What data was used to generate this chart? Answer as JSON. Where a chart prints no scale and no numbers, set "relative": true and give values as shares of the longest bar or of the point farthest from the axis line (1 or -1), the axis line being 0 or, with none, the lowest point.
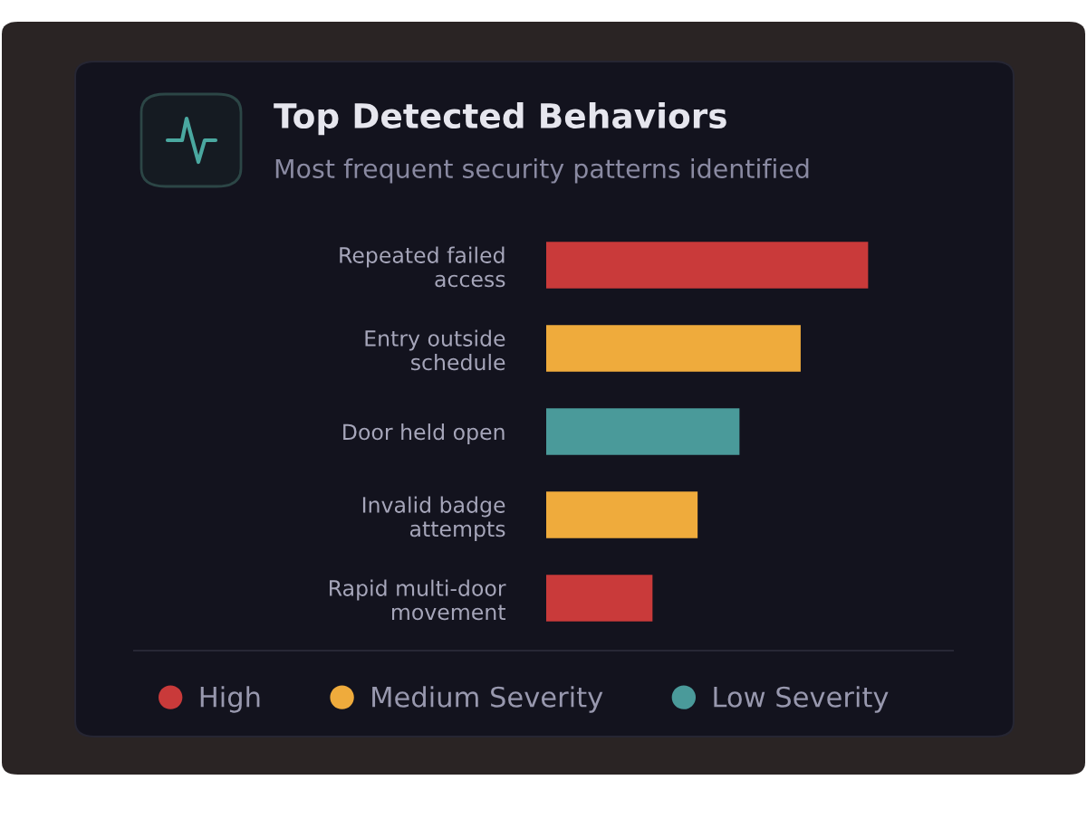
{
  "chart_data": {
    "type": "bar",
    "orientation": "horizontal",
    "relative": true,
    "title": "Top Detected Behaviors",
    "subtitle": "Most frequent security patterns identified",
    "categories": [
      "Repeated failed\naccess",
      "Entry outside\nschedule",
      "Door held open",
      "Invalid badge\nattempts",
      "Rapid multi-door\nmovement"
    ],
    "series": [
      {
        "name": "High",
        "color": "#c93a3a",
        "values": [
          1,
          null,
          null,
          null,
          0.33
        ]
      },
      {
        "name": "Medium Severity",
        "color": "#efab3c",
        "values": [
          null,
          0.79,
          null,
          0.47,
          null
        ]
      },
      {
        "name": "Low Severity",
        "color": "#4a9a9a",
        "values": [
          null,
          null,
          0.6,
          null,
          null
        ]
      }
    ],
    "legend": "bottom",
    "tick_labels": "y"
  }
}
